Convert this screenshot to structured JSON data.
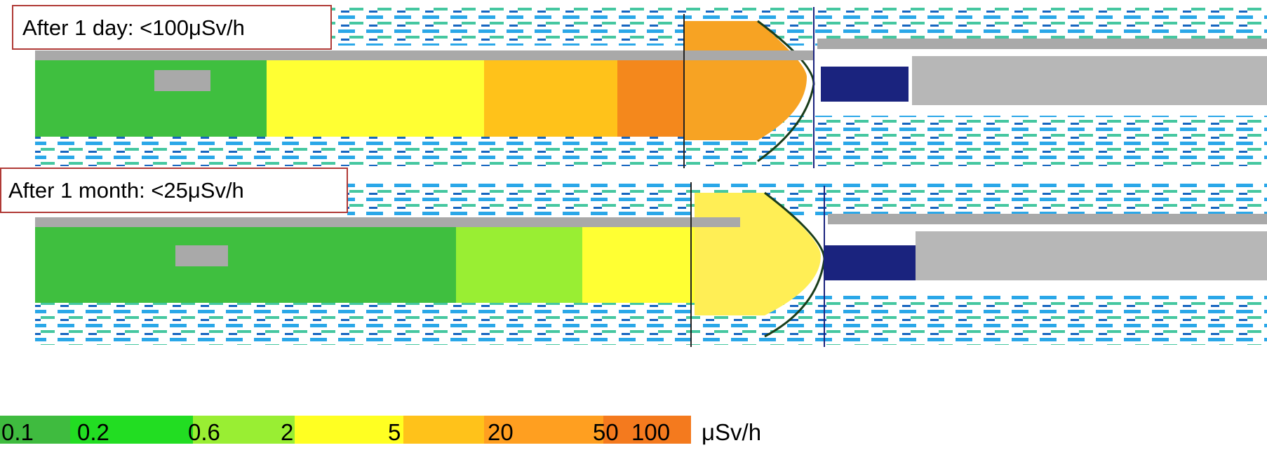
{
  "panels": [
    {
      "label": "After 1 day: <100μSv/h"
    },
    {
      "label": "After 1 month: <25μSv/h"
    }
  ],
  "colorbar": {
    "labels": [
      0.1,
      0.2,
      0.6,
      2,
      5,
      20,
      50,
      100
    ],
    "colors": [
      "#3fbb3f",
      "#22dd22",
      "#99ee33",
      "#ffff22",
      "#ffc21a",
      "#ff9f20",
      "#f47a1e"
    ],
    "unit": "μSv/h"
  }
}
